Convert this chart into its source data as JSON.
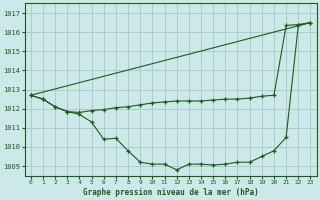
{
  "title": "Graphe pression niveau de la mer (hPa)",
  "bg_color": "#cce8e8",
  "grid_color": "#aacccc",
  "line_color": "#1a5c1a",
  "xlim": [
    -0.5,
    23.5
  ],
  "ylim": [
    1008.5,
    1017.5
  ],
  "yticks": [
    1009,
    1010,
    1011,
    1012,
    1013,
    1014,
    1015,
    1016,
    1017
  ],
  "xticks": [
    0,
    1,
    2,
    3,
    4,
    5,
    6,
    7,
    8,
    9,
    10,
    11,
    12,
    13,
    14,
    15,
    16,
    17,
    18,
    19,
    20,
    21,
    22,
    23
  ],
  "series_low": {
    "x": [
      0,
      1,
      2,
      3,
      4,
      5,
      6,
      7,
      8,
      9,
      10,
      11,
      12,
      13,
      14,
      15,
      16,
      17,
      18,
      19,
      20,
      21,
      22,
      23
    ],
    "y": [
      1012.7,
      1012.5,
      1012.1,
      1011.85,
      1011.7,
      1011.3,
      1010.4,
      1010.45,
      1009.8,
      1009.2,
      1009.1,
      1009.1,
      1008.8,
      1009.1,
      1009.1,
      1009.05,
      1009.1,
      1009.2,
      1009.2,
      1009.5,
      1009.8,
      1010.5,
      1016.35,
      1016.5
    ]
  },
  "series_mid": {
    "x": [
      0,
      1,
      2,
      3,
      4,
      5,
      6,
      7,
      8,
      9,
      10,
      11,
      12,
      13,
      14,
      15,
      16,
      17,
      18,
      19,
      20,
      21,
      22,
      23
    ],
    "y": [
      1012.7,
      1012.5,
      1012.1,
      1011.85,
      1011.8,
      1011.9,
      1011.95,
      1012.05,
      1012.1,
      1012.2,
      1012.3,
      1012.35,
      1012.4,
      1012.4,
      1012.4,
      1012.45,
      1012.5,
      1012.5,
      1012.55,
      1012.65,
      1012.7,
      1016.35,
      1016.4,
      1016.5
    ]
  },
  "series_diag": {
    "x": [
      0,
      23
    ],
    "y": [
      1012.7,
      1016.5
    ]
  }
}
